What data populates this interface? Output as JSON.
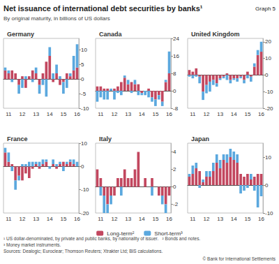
{
  "header": {
    "title": "Net issuance of international debt securities by banks¹",
    "graph_label": "Graph 5",
    "subtitle": "By original maturity, in billions of US dollars"
  },
  "footnotes": [
    "¹ US dollar-denominated, by private and public banks, by nationality of issuer.",
    "² Bonds and notes.",
    "³ Money market instruments."
  ],
  "sources": "Sources: Dealogic; Euroclear; Thomson Reuters; Xtrakter Ltd; BIS calculations.",
  "copyright": "© Bank for International Settlements",
  "chart_data": [
    {
      "type": "bar",
      "title": "Germany",
      "stacked": true,
      "grid": false,
      "categories": [
        null,
        "11",
        null,
        null,
        null,
        "12",
        null,
        null,
        null,
        "13",
        null,
        null,
        null,
        "14",
        null,
        null,
        null,
        "15",
        null,
        null,
        null,
        "16"
      ],
      "series": [
        {
          "name": "Long-term²",
          "color": "#c2475f",
          "values": [
            3,
            2,
            3,
            2,
            -2,
            1,
            -3,
            1,
            3,
            2,
            -2,
            2,
            6,
            8,
            -1,
            2,
            -2,
            -1,
            2,
            1,
            3,
            4
          ]
        },
        {
          "name": "Short-term³",
          "color": "#5ba8de",
          "values": [
            1,
            1,
            -1,
            0,
            -3,
            -3,
            1,
            0,
            -1,
            2,
            -3,
            -2,
            -6,
            3,
            2,
            3,
            1,
            -4,
            -3,
            1,
            5,
            8
          ]
        }
      ],
      "ylim": [
        -10,
        14
      ],
      "yticks": [
        -10,
        -5,
        0,
        5,
        10
      ]
    },
    {
      "type": "bar",
      "title": "Canada",
      "stacked": true,
      "grid": false,
      "categories": [
        null,
        "11",
        null,
        null,
        null,
        "12",
        null,
        null,
        null,
        "13",
        null,
        null,
        null,
        "14",
        null,
        null,
        null,
        "15",
        null,
        null,
        null,
        "16"
      ],
      "series": [
        {
          "name": "Long-term²",
          "color": "#c2475f",
          "values": [
            2,
            2,
            1,
            1,
            0,
            1,
            2,
            4,
            6,
            3,
            4,
            3,
            3,
            -1,
            0,
            1,
            -3,
            -4,
            -2,
            -5,
            4,
            8
          ]
        },
        {
          "name": "Short-term³",
          "color": "#5ba8de",
          "values": [
            -5,
            -3,
            -4,
            -4,
            1,
            -4,
            -1,
            -2,
            1,
            2,
            -1,
            2,
            -2,
            -1,
            -2,
            -3,
            -2,
            -3,
            -2,
            -2,
            1,
            10
          ]
        }
      ],
      "ylim": [
        -8,
        24
      ],
      "yticks": [
        -8,
        0,
        8,
        16,
        24
      ]
    },
    {
      "type": "bar",
      "title": "United Kingdom",
      "stacked": true,
      "grid": false,
      "categories": [
        null,
        "11",
        null,
        null,
        null,
        "12",
        null,
        null,
        null,
        "13",
        null,
        null,
        null,
        "14",
        null,
        null,
        null,
        "15",
        null,
        null,
        null,
        "16"
      ],
      "series": [
        {
          "name": "Long-term²",
          "color": "#c2475f",
          "values": [
            3,
            2,
            4,
            -1,
            -10,
            -6,
            -4,
            -3,
            -5,
            -2,
            -1,
            1,
            -3,
            -2,
            -2,
            -1,
            -3,
            2,
            -1,
            5,
            12,
            14
          ]
        },
        {
          "name": "Short-term³",
          "color": "#5ba8de",
          "values": [
            -1,
            -2,
            -1,
            -4,
            -5,
            -5,
            -6,
            -3,
            -2,
            -1,
            -1,
            -3,
            -2,
            -1,
            -2,
            -1,
            -2,
            -2,
            -3,
            2,
            3,
            6
          ]
        }
      ],
      "ylim": [
        -20,
        22
      ],
      "yticks": [
        -20,
        -10,
        0,
        10,
        20
      ]
    },
    {
      "type": "bar",
      "title": "France",
      "stacked": true,
      "grid": false,
      "categories": [
        null,
        "11",
        null,
        null,
        null,
        "12",
        null,
        null,
        null,
        "13",
        null,
        null,
        null,
        "14",
        null,
        null,
        null,
        "15",
        null,
        null,
        null,
        "16"
      ],
      "series": [
        {
          "name": "Long-term²",
          "color": "#c2475f",
          "values": [
            6,
            2,
            1,
            -6,
            -4,
            -6,
            -3,
            -5,
            -1,
            1,
            -1,
            1,
            2,
            0,
            1,
            -1,
            1,
            2,
            1,
            2,
            1,
            0
          ]
        },
        {
          "name": "Short-term³",
          "color": "#5ba8de",
          "values": [
            2,
            4,
            -2,
            -4,
            -2,
            1,
            1,
            2,
            2,
            1,
            2,
            2,
            1,
            -1,
            2,
            1,
            1,
            -2,
            1,
            1,
            2,
            2
          ]
        }
      ],
      "ylim": [
        -20,
        10
      ],
      "yticks": [
        -20,
        -10,
        0,
        10
      ]
    },
    {
      "type": "bar",
      "title": "Italy",
      "stacked": true,
      "grid": false,
      "categories": [
        null,
        "11",
        null,
        null,
        null,
        "12",
        null,
        null,
        null,
        "13",
        null,
        null,
        null,
        "14",
        null,
        null,
        null,
        "15",
        null,
        null,
        null,
        "16"
      ],
      "series": [
        {
          "name": "Long-term²",
          "color": "#c2475f",
          "values": [
            2,
            1,
            -1,
            -2,
            -1,
            -1,
            1,
            1,
            2,
            1,
            1,
            2,
            4,
            0,
            1,
            0,
            1,
            0,
            -1,
            -1,
            -2,
            -1
          ]
        },
        {
          "name": "Short-term³",
          "color": "#5ba8de",
          "values": [
            0,
            -1,
            -2,
            -1,
            -1,
            0,
            0,
            -1,
            0,
            0,
            0,
            0,
            0,
            0,
            0,
            0,
            -1,
            0,
            0,
            -1,
            -1,
            0
          ]
        }
      ],
      "ylim": [
        -3,
        5
      ],
      "yticks": [
        -2,
        0,
        2,
        4
      ]
    },
    {
      "type": "bar",
      "title": "Japan",
      "stacked": true,
      "grid": false,
      "categories": [
        null,
        "11",
        null,
        null,
        null,
        "12",
        null,
        null,
        null,
        "13",
        null,
        null,
        null,
        "14",
        null,
        null,
        null,
        "15",
        null,
        null,
        null,
        "16"
      ],
      "series": [
        {
          "name": "Long-term²",
          "color": "#c2475f",
          "values": [
            3,
            4,
            6,
            5,
            1,
            3,
            3,
            5,
            8,
            6,
            9,
            8,
            10,
            9,
            8,
            4,
            3,
            4,
            2,
            3,
            4,
            4
          ]
        },
        {
          "name": "Short-term³",
          "color": "#5ba8de",
          "values": [
            1,
            3,
            2,
            -1,
            1,
            2,
            2,
            3,
            3,
            3,
            2,
            3,
            3,
            3,
            3,
            -3,
            -2,
            -1,
            2,
            -2,
            -8,
            -4
          ]
        }
      ],
      "ylim": [
        -10,
        15
      ],
      "yticks": [
        -10,
        0,
        10
      ]
    }
  ]
}
